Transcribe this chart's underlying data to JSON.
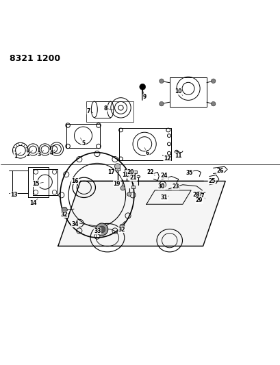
{
  "title": "8321 1200",
  "bg_color": "#ffffff",
  "line_color": "#000000",
  "fig_width": 4.1,
  "fig_height": 5.33,
  "dpi": 100
}
